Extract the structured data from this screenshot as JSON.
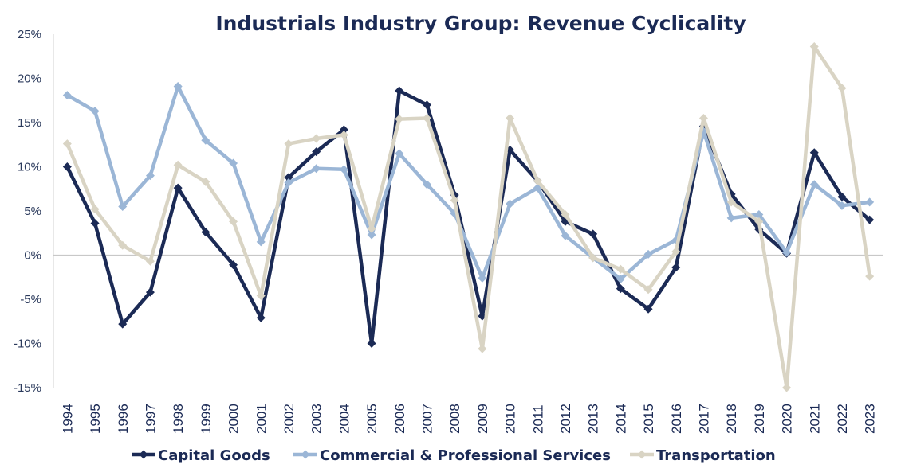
{
  "chart_data": {
    "type": "line",
    "title": "Industrials Industry Group: Revenue Cyclicality",
    "xlabel": "",
    "ylabel": "",
    "ylim": [
      -15,
      25
    ],
    "ytick_values": [
      -15,
      -10,
      -5,
      0,
      5,
      10,
      15,
      20,
      25
    ],
    "ytick_labels": [
      "-15%",
      "-10%",
      "-5%",
      "0%",
      "5%",
      "10%",
      "15%",
      "20%",
      "25%"
    ],
    "categories": [
      "1994",
      "1995",
      "1996",
      "1997",
      "1998",
      "1999",
      "2000",
      "2001",
      "2002",
      "2003",
      "2004",
      "2005",
      "2006",
      "2007",
      "2008",
      "2009",
      "2010",
      "2011",
      "2012",
      "2013",
      "2014",
      "2015",
      "2016",
      "2017",
      "2018",
      "2019",
      "2020",
      "2021",
      "2022",
      "2023"
    ],
    "legend_position": "bottom",
    "series": [
      {
        "name": "Capital Goods",
        "color": "#1b2a55",
        "marker": "diamond",
        "values": [
          10.0,
          3.6,
          -7.8,
          -4.2,
          7.6,
          2.6,
          -1.1,
          -7.1,
          8.8,
          11.7,
          14.2,
          -10.0,
          18.6,
          17.0,
          6.8,
          -6.9,
          11.9,
          8.4,
          3.8,
          2.4,
          -3.8,
          -6.1,
          -1.4,
          14.6,
          6.9,
          2.9,
          0.2,
          11.6,
          6.6,
          4.0
        ]
      },
      {
        "name": "Commercial  & Professional Services",
        "color": "#9bb6d6",
        "marker": "diamond",
        "values": [
          18.1,
          16.3,
          5.5,
          9.0,
          19.1,
          13.0,
          10.4,
          1.5,
          8.2,
          9.8,
          9.7,
          2.3,
          11.5,
          8.0,
          4.7,
          -2.6,
          5.8,
          7.6,
          2.2,
          -0.3,
          -2.7,
          0.1,
          1.7,
          14.0,
          4.2,
          4.6,
          0.3,
          8.0,
          5.6,
          6.0
        ]
      },
      {
        "name": "Transportation",
        "color": "#d9d4c4",
        "marker": "diamond",
        "values": [
          12.6,
          5.2,
          1.1,
          -0.7,
          10.2,
          8.3,
          3.8,
          -4.6,
          12.6,
          13.2,
          13.6,
          3.0,
          15.4,
          15.5,
          6.2,
          -10.6,
          15.5,
          8.4,
          4.6,
          -0.3,
          -1.6,
          -3.9,
          0.4,
          15.5,
          6.0,
          3.8,
          -15.0,
          23.6,
          18.9,
          -2.4
        ]
      }
    ]
  }
}
